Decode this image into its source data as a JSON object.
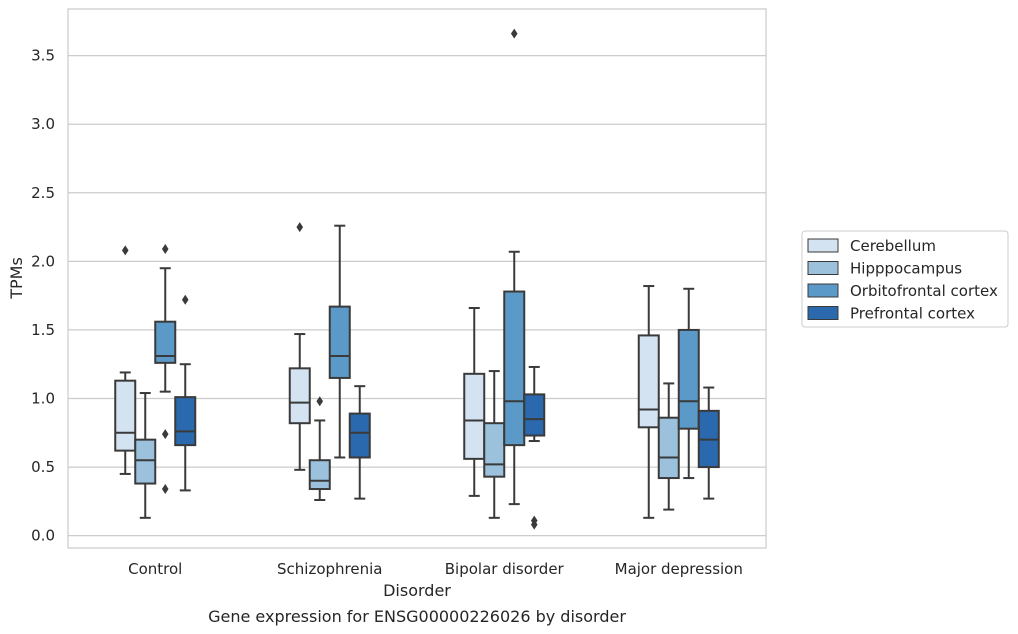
{
  "caption": "Gene expression for ENSG00000226026 by disorder",
  "chart_data": {
    "type": "box",
    "xlabel": "Disorder",
    "ylabel": "TPMs",
    "ylim": [
      -0.09,
      3.84
    ],
    "yticks": [
      "0.0",
      "0.5",
      "1.0",
      "1.5",
      "2.0",
      "2.5",
      "3.0",
      "3.5"
    ],
    "grid": "horizontal",
    "legend_position": "right",
    "categories": [
      "Control",
      "Schizophrenia",
      "Bipolar disorder",
      "Major depression"
    ],
    "series": [
      {
        "name": "Cerebellum",
        "color": "#d4e3f2",
        "boxes": [
          {
            "min": 0.45,
            "q1": 0.62,
            "median": 0.75,
            "q3": 1.13,
            "max": 1.19,
            "outliers": [
              2.08
            ]
          },
          {
            "min": 0.48,
            "q1": 0.82,
            "median": 0.97,
            "q3": 1.22,
            "max": 1.47,
            "outliers": [
              2.25
            ]
          },
          {
            "min": 0.29,
            "q1": 0.56,
            "median": 0.84,
            "q3": 1.18,
            "max": 1.66,
            "outliers": []
          },
          {
            "min": 0.13,
            "q1": 0.79,
            "median": 0.92,
            "q3": 1.46,
            "max": 1.82,
            "outliers": []
          }
        ]
      },
      {
        "name": "Hipppocampus",
        "color": "#9bc1dc",
        "boxes": [
          {
            "min": 0.13,
            "q1": 0.38,
            "median": 0.55,
            "q3": 0.7,
            "max": 1.04,
            "outliers": []
          },
          {
            "min": 0.26,
            "q1": 0.34,
            "median": 0.4,
            "q3": 0.55,
            "max": 0.84,
            "outliers": [
              0.98
            ]
          },
          {
            "min": 0.13,
            "q1": 0.43,
            "median": 0.52,
            "q3": 0.82,
            "max": 1.2,
            "outliers": []
          },
          {
            "min": 0.19,
            "q1": 0.42,
            "median": 0.57,
            "q3": 0.86,
            "max": 1.11,
            "outliers": []
          }
        ]
      },
      {
        "name": "Orbitofrontal cortex",
        "color": "#5b9ac8",
        "boxes": [
          {
            "min": 1.05,
            "q1": 1.26,
            "median": 1.31,
            "q3": 1.56,
            "max": 1.95,
            "outliers": [
              2.09,
              0.74,
              0.34
            ]
          },
          {
            "min": 0.57,
            "q1": 1.15,
            "median": 1.31,
            "q3": 1.67,
            "max": 2.26,
            "outliers": []
          },
          {
            "min": 0.23,
            "q1": 0.66,
            "median": 0.98,
            "q3": 1.78,
            "max": 2.07,
            "outliers": [
              3.66
            ]
          },
          {
            "min": 0.42,
            "q1": 0.78,
            "median": 0.98,
            "q3": 1.5,
            "max": 1.8,
            "outliers": []
          }
        ]
      },
      {
        "name": "Prefrontal cortex",
        "color": "#2a69ad",
        "boxes": [
          {
            "min": 0.33,
            "q1": 0.66,
            "median": 0.76,
            "q3": 1.01,
            "max": 1.25,
            "outliers": [
              1.72
            ]
          },
          {
            "min": 0.27,
            "q1": 0.57,
            "median": 0.75,
            "q3": 0.89,
            "max": 1.09,
            "outliers": []
          },
          {
            "min": 0.69,
            "q1": 0.73,
            "median": 0.85,
            "q3": 1.03,
            "max": 1.23,
            "outliers": [
              0.11,
              0.08
            ]
          },
          {
            "min": 0.27,
            "q1": 0.5,
            "median": 0.7,
            "q3": 0.91,
            "max": 1.08,
            "outliers": []
          }
        ]
      }
    ]
  }
}
